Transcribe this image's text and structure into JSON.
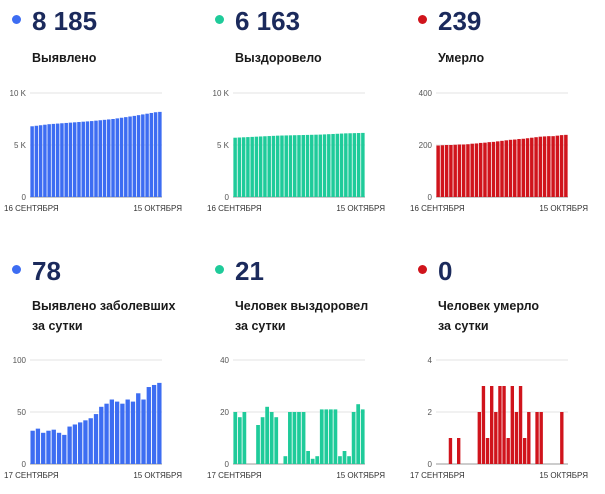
{
  "panels": [
    {
      "value": "8 185",
      "label_lines": [
        "Выявлено"
      ],
      "color": "#3d6df2",
      "chart_data": {
        "type": "bar",
        "x_start_label": "16 СЕНТЯБРЯ",
        "x_end_label": "15 ОКТЯБРЯ",
        "yticks": [
          "0",
          "5 K",
          "10 K"
        ],
        "ylim": [
          0,
          10000
        ],
        "values": [
          6800,
          6850,
          6900,
          6950,
          7000,
          7030,
          7060,
          7090,
          7120,
          7150,
          7180,
          7210,
          7240,
          7270,
          7300,
          7340,
          7380,
          7420,
          7460,
          7500,
          7560,
          7620,
          7680,
          7740,
          7800,
          7870,
          7940,
          8010,
          8080,
          8150,
          8185
        ]
      }
    },
    {
      "value": "6 163",
      "label_lines": [
        "Выздоровело"
      ],
      "color": "#1fcb9a",
      "chart_data": {
        "type": "bar",
        "x_start_label": "16 СЕНТЯБРЯ",
        "x_end_label": "15 ОКТЯБРЯ",
        "yticks": [
          "0",
          "5 K",
          "10 K"
        ],
        "ylim": [
          0,
          10000
        ],
        "values": [
          5700,
          5720,
          5740,
          5760,
          5780,
          5800,
          5820,
          5840,
          5860,
          5880,
          5900,
          5910,
          5920,
          5930,
          5940,
          5950,
          5960,
          5970,
          5980,
          5990,
          6000,
          6020,
          6040,
          6060,
          6080,
          6100,
          6120,
          6130,
          6140,
          6150,
          6163
        ]
      }
    },
    {
      "value": "239",
      "label_lines": [
        "Умерло"
      ],
      "color": "#d0141c",
      "chart_data": {
        "type": "bar",
        "x_start_label": "16 СЕНТЯБРЯ",
        "x_end_label": "15 ОКТЯБРЯ",
        "yticks": [
          "0",
          "200",
          "400"
        ],
        "ylim": [
          0,
          400
        ],
        "values": [
          198,
          199,
          200,
          200,
          201,
          202,
          202,
          203,
          205,
          206,
          208,
          209,
          211,
          212,
          214,
          216,
          218,
          220,
          221,
          223,
          224,
          226,
          228,
          230,
          232,
          233,
          234,
          234,
          236,
          238,
          239
        ]
      }
    },
    {
      "value": "78",
      "label_lines": [
        "Выявлено заболевших",
        "за сутки"
      ],
      "color": "#3d6df2",
      "chart_data": {
        "type": "bar",
        "x_start_label": "17 СЕНТЯБРЯ",
        "x_end_label": "15 ОКТЯБРЯ",
        "yticks": [
          "0",
          "50",
          "100"
        ],
        "ylim": [
          0,
          100
        ],
        "values": [
          32,
          34,
          30,
          32,
          33,
          30,
          28,
          36,
          38,
          40,
          42,
          44,
          48,
          55,
          58,
          62,
          60,
          58,
          62,
          60,
          68,
          62,
          74,
          76,
          78
        ]
      }
    },
    {
      "value": "21",
      "label_lines": [
        "Человек выздоровел",
        "за сутки"
      ],
      "color": "#1fcb9a",
      "chart_data": {
        "type": "bar",
        "x_start_label": "17 СЕНТЯБРЯ",
        "x_end_label": "15 ОКТЯБРЯ",
        "yticks": [
          "0",
          "20",
          "40"
        ],
        "ylim": [
          0,
          40
        ],
        "values": [
          20,
          18,
          20,
          0,
          0,
          15,
          18,
          22,
          20,
          18,
          0,
          3,
          20,
          20,
          20,
          20,
          5,
          2,
          3,
          21,
          21,
          21,
          21,
          3,
          5,
          3,
          20,
          23,
          21
        ]
      }
    },
    {
      "value": "0",
      "label_lines": [
        "Человек умерло",
        "за сутки"
      ],
      "color": "#d0141c",
      "chart_data": {
        "type": "bar",
        "x_start_label": "17 СЕНТЯБРЯ",
        "x_end_label": "15 ОКТЯБРЯ",
        "yticks": [
          "0",
          "2",
          "4"
        ],
        "ylim": [
          0,
          4
        ],
        "values": [
          0,
          0,
          0,
          1,
          0,
          1,
          0,
          0,
          0,
          0,
          2,
          3,
          1,
          3,
          2,
          3,
          3,
          1,
          3,
          2,
          3,
          1,
          2,
          0,
          2,
          2,
          0,
          0,
          0,
          0,
          2,
          0
        ]
      }
    }
  ]
}
